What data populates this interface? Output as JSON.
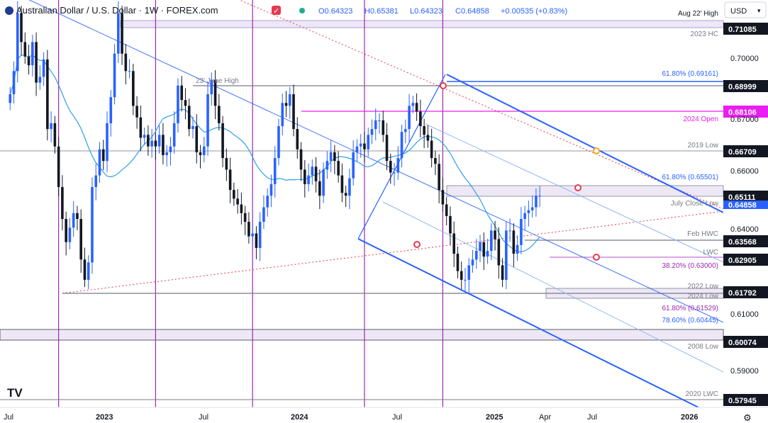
{
  "header": {
    "symbol_title": "Australian Dollar / U.S. Dollar · 1W · FOREX.com",
    "open": "O0.64323",
    "high": "H0.65381",
    "low": "L0.64323",
    "close": "C0.64858",
    "change": "+0.00535 (+0.83%)",
    "currency_button": "USD"
  },
  "colors": {
    "up": "#2962ff",
    "down": "#131722",
    "fib": "#2962ff",
    "magenta": "#e91ef0",
    "purple": "#9c27b0",
    "grey": "#787b86",
    "band": "#d1c4e9",
    "ma": "#2ea0e8",
    "red_dot": "#e53950",
    "orange_dot": "#f5a623"
  },
  "chart_data": {
    "type": "candlestick",
    "title": "Australian Dollar / U.S. Dollar · 1W · FOREX.com",
    "ylim": [
      0.576,
      0.7165
    ],
    "y_ticks": [
      0.58,
      0.59,
      0.6,
      0.61,
      0.62,
      0.63,
      0.64,
      0.65,
      0.66,
      0.67,
      0.68,
      0.69,
      0.7
    ],
    "x_ticks": [
      {
        "label": "Jul",
        "week": 0
      },
      {
        "label": "2023",
        "week": 26
      },
      {
        "label": "Jul",
        "week": 52
      },
      {
        "label": "2024",
        "week": 78
      },
      {
        "label": "Jul",
        "week": 104
      },
      {
        "label": "2025",
        "week": 130
      },
      {
        "label": "Apr",
        "week": 143
      },
      {
        "label": "Jul",
        "week": 156
      },
      {
        "label": "2026",
        "week": 182
      }
    ],
    "vertical_markers": [
      14,
      40,
      66,
      96,
      117
    ],
    "candles_weekly_close": [
      0.684,
      0.692,
      0.712,
      0.702,
      0.697,
      0.694,
      0.702,
      0.688,
      0.69,
      0.696,
      0.672,
      0.674,
      0.666,
      0.652,
      0.641,
      0.633,
      0.638,
      0.643,
      0.641,
      0.627,
      0.62,
      0.626,
      0.652,
      0.656,
      0.665,
      0.661,
      0.674,
      0.683,
      0.698,
      0.712,
      0.698,
      0.692,
      0.692,
      0.68,
      0.676,
      0.669,
      0.67,
      0.666,
      0.668,
      0.666,
      0.67,
      0.663,
      0.664,
      0.666,
      0.674,
      0.687,
      0.682,
      0.68,
      0.672,
      0.673,
      0.664,
      0.663,
      0.666,
      0.684,
      0.689,
      0.68,
      0.674,
      0.662,
      0.658,
      0.651,
      0.648,
      0.646,
      0.643,
      0.64,
      0.635,
      0.636,
      0.631,
      0.64,
      0.645,
      0.649,
      0.653,
      0.662,
      0.673,
      0.681,
      0.68,
      0.684,
      0.672,
      0.665,
      0.658,
      0.653,
      0.656,
      0.659,
      0.654,
      0.649,
      0.658,
      0.661,
      0.664,
      0.661,
      0.656,
      0.65,
      0.649,
      0.655,
      0.664,
      0.666,
      0.667,
      0.665,
      0.67,
      0.672,
      0.675,
      0.675,
      0.67,
      0.661,
      0.657,
      0.657,
      0.662,
      0.671,
      0.672,
      0.68,
      0.681,
      0.678,
      0.673,
      0.67,
      0.668,
      0.662,
      0.66,
      0.651,
      0.646,
      0.642,
      0.636,
      0.629,
      0.623,
      0.62,
      0.62,
      0.625,
      0.627,
      0.63,
      0.633,
      0.628,
      0.63,
      0.637,
      0.634,
      0.625,
      0.62,
      0.637,
      0.637,
      0.629,
      0.632,
      0.641,
      0.643,
      0.644,
      0.645,
      0.649,
      0.649
    ],
    "moving_average": "20-week",
    "levels": [
      {
        "price": 0.71085,
        "label": "Aug 22' High",
        "sub": "2023 HC",
        "color": "#787b86",
        "tag": "0.71085"
      },
      {
        "price": 0.68999,
        "label": "23' June High",
        "color": "#787b86",
        "tag": "0.68999"
      },
      {
        "price": 0.69161,
        "label": "61.80% (0.69161)",
        "color": "#2962ff"
      },
      {
        "price": 0.68106,
        "label": "2024 Open",
        "color": "#e91ef0",
        "tag": "0.68106"
      },
      {
        "price": 0.66709,
        "label": "2019 Low",
        "color": "#787b86",
        "tag": "0.66709"
      },
      {
        "price": 0.65501,
        "label": "61.80% (0.65501)",
        "color": "#2962ff"
      },
      {
        "price": 0.65111,
        "label": "July Close Low",
        "color": "#787b86",
        "tag": "0.65111"
      },
      {
        "price": 0.63568,
        "label": "Feb HWC",
        "color": "#787b86",
        "tag": "0.63568"
      },
      {
        "price": 0.62905,
        "label": "LWC",
        "color": "#787b86",
        "tag": "0.62905"
      },
      {
        "price": 0.63,
        "label": "38.20% (0.63000)",
        "color": "#9c27b0"
      },
      {
        "price": 0.61792,
        "label": "2022 Low",
        "sub": "2024 Low",
        "color": "#787b86",
        "tag": "0.61792"
      },
      {
        "price": 0.61529,
        "label": "61.80% (0.61529)",
        "color": "#9c27b0"
      },
      {
        "price": 0.60445,
        "label": "78.60% (0.60445)",
        "color": "#2962ff"
      },
      {
        "price": 0.60074,
        "label": "2008 Low",
        "color": "#787b86",
        "tag": "0.60074"
      },
      {
        "price": 0.57945,
        "label": "2020 LWC",
        "color": "#787b86",
        "tag": "0.57945"
      }
    ],
    "current_price": {
      "value": 0.64858,
      "tag": "0.64858"
    }
  },
  "labels": {
    "aug22_high": "Aug 22' High",
    "hc_2023": "2023 HC",
    "june_high_23": "23' June High",
    "fib_69161": "61.80% (0.69161)",
    "open_2024": "2024 Open",
    "low_2019": "2019 Low",
    "fib_65501": "61.80% (0.65501)",
    "july_close_low": "July Close Low",
    "feb_hwc": "Feb HWC",
    "lwc": "LWC",
    "fib_63000": "38.20% (0.63000)",
    "low_2022": "2022 Low",
    "low_2024": "2024 Low",
    "fib_61529": "61.80% (0.61529)",
    "fib_60445": "78.60% (0.60445)",
    "low_2008": "2008 Low",
    "lwc_2020": "2020 LWC"
  },
  "price_tags": {
    "p71085": "0.71085",
    "p70000": "0.70000",
    "p68999": "0.68999",
    "p68106": "0.68106",
    "p67000": "0.67000",
    "p66709": "0.66709",
    "p66000": "0.66000",
    "p65111": "0.65111",
    "p64858": "0.64858",
    "p64000": "0.64000",
    "p63568": "0.63568",
    "p62905": "0.62905",
    "p61792": "0.61792",
    "p61000": "0.61000",
    "p60074": "0.60074",
    "p59000": "0.59000",
    "p57945": "0.57945"
  },
  "xaxis": {
    "jul1": "Jul",
    "y2023": "2023",
    "jul2": "Jul",
    "y2024": "2024",
    "jul3": "Jul",
    "y2025": "2025",
    "apr": "Apr",
    "jul4": "Jul",
    "y2026": "2026"
  },
  "logo": "TV"
}
